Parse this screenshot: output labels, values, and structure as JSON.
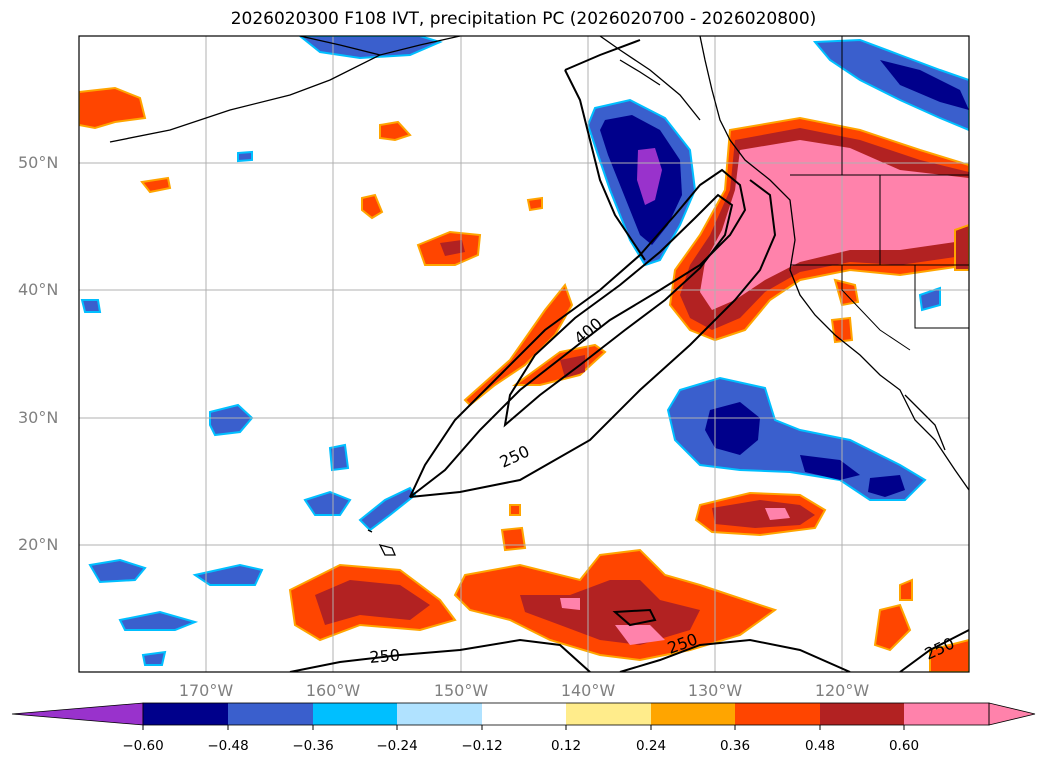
{
  "title": "2026020300 F108 IVT, precipitation PC (2026020700 - 2026020800)",
  "map": {
    "lat_labels": [
      "50°N",
      "40°N",
      "30°N",
      "20°N"
    ],
    "lon_labels": [
      "170°W",
      "160°W",
      "150°W",
      "140°W",
      "130°W",
      "120°W"
    ],
    "contour_labels": [
      "400",
      "250",
      "250",
      "250",
      "250"
    ]
  },
  "colorbar": {
    "ticks": [
      "−0.60",
      "−0.48",
      "−0.36",
      "−0.24",
      "−0.12",
      "0.12",
      "0.24",
      "0.36",
      "0.48",
      "0.60"
    ],
    "colors": [
      "#9932cc",
      "#00008b",
      "#3a5fcd",
      "#00bfff",
      "#b0e2ff",
      "#ffffff",
      "#ffec8b",
      "#ffa500",
      "#ff4500",
      "#b22222",
      "#ff82ab"
    ]
  }
}
